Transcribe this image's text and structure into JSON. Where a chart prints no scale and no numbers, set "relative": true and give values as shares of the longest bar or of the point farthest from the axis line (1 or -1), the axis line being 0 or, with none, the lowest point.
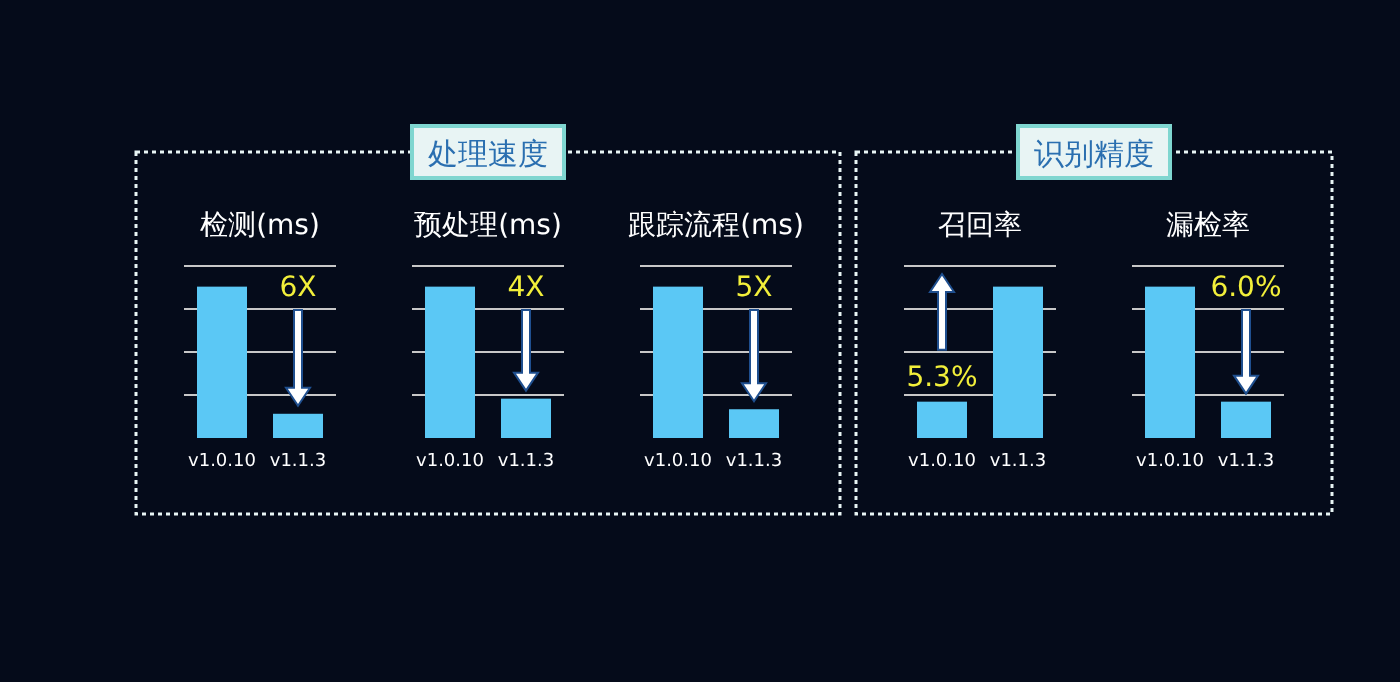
{
  "chart_data": [
    {
      "type": "other",
      "title": "处理速度"
    },
    {
      "type": "bar",
      "title": "检测(ms)",
      "categories": [
        "v1.0.10",
        "v1.1.3"
      ],
      "values": [
        1,
        0.16
      ],
      "color": "#5bc8f5",
      "relative": true,
      "grid": "y",
      "annotations": [
        "6X"
      ]
    },
    {
      "type": "bar",
      "title": "预处理(ms)",
      "categories": [
        "v1.0.10",
        "v1.1.3"
      ],
      "values": [
        1,
        0.26
      ],
      "color": "#5bc8f5",
      "relative": true,
      "grid": "y",
      "annotations": [
        "4X"
      ]
    },
    {
      "type": "bar",
      "title": "跟踪流程(ms)",
      "categories": [
        "v1.0.10",
        "v1.1.3"
      ],
      "values": [
        1,
        0.19
      ],
      "color": "#5bc8f5",
      "relative": true,
      "grid": "y",
      "annotations": [
        "5X"
      ]
    },
    {
      "type": "other",
      "title": "识别精度"
    },
    {
      "type": "bar",
      "title": "召回率",
      "categories": [
        "v1.0.10",
        "v1.1.3"
      ],
      "values": [
        0.24,
        1
      ],
      "color": "#5bc8f5",
      "relative": true,
      "grid": "y",
      "annotations": [
        "5.3%"
      ]
    },
    {
      "type": "bar",
      "title": "漏检率",
      "categories": [
        "v1.0.10",
        "v1.1.3"
      ],
      "values": [
        1,
        0.24
      ],
      "color": "#5bc8f5",
      "relative": true,
      "grid": "y",
      "annotations": [
        "6.0%"
      ]
    }
  ]
}
